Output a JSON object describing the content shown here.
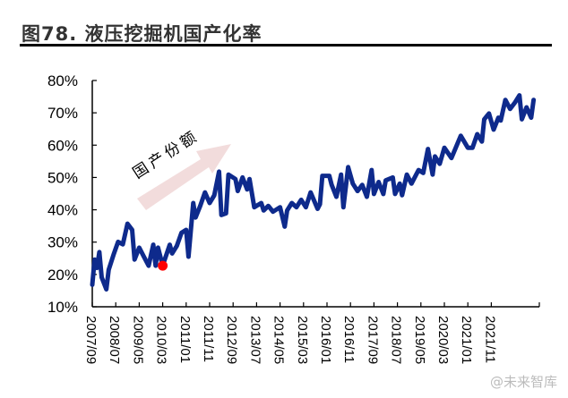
{
  "title": "图78. 液压挖掘机国产化率",
  "watermark": "@未来智库",
  "annotation": {
    "text": "国产份额",
    "arrow_color": "#f2dcdc"
  },
  "chart_data": {
    "type": "line",
    "title": "图78. 液压挖掘机国产化率",
    "xlabel": "",
    "ylabel": "",
    "ylim": [
      10,
      80
    ],
    "xlim": [
      "2007/09",
      "2023/07"
    ],
    "y_ticks": [
      "10%",
      "20%",
      "30%",
      "40%",
      "50%",
      "60%",
      "70%",
      "80%"
    ],
    "x_ticks": [
      "2007/09",
      "2008/07",
      "2009/05",
      "2010/03",
      "2011/01",
      "2011/11",
      "2012/09",
      "2013/07",
      "2014/05",
      "2015/03",
      "2016/01",
      "2016/11",
      "2017/09",
      "2018/07",
      "2019/05",
      "2020/03",
      "2021/01",
      "2021/11"
    ],
    "grid": false,
    "line_color": "#0e2a8c",
    "highlight": {
      "x": "2010/03",
      "y": 22.7,
      "color": "#ff0000"
    },
    "x": [
      "2007/09",
      "2007/10",
      "2007/11",
      "2007/12",
      "2008/01",
      "2008/03",
      "2008/04",
      "2008/06",
      "2008/08",
      "2008/10",
      "2008/12",
      "2009/02",
      "2009/03",
      "2009/05",
      "2009/07",
      "2009/09",
      "2009/11",
      "2009/12",
      "2010/01",
      "2010/03",
      "2010/06",
      "2010/07",
      "2010/09",
      "2010/11",
      "2011/01",
      "2011/02",
      "2011/04",
      "2011/05",
      "2011/07",
      "2011/09",
      "2011/11",
      "2012/01",
      "2012/03",
      "2012/04",
      "2012/06",
      "2012/07",
      "2012/10",
      "2012/11",
      "2013/01",
      "2013/03",
      "2013/04",
      "2013/06",
      "2013/09",
      "2013/10",
      "2013/12",
      "2014/02",
      "2014/05",
      "2014/07",
      "2014/08",
      "2014/10",
      "2014/12",
      "2015/02",
      "2015/04",
      "2015/06",
      "2015/09",
      "2015/10",
      "2015/11",
      "2016/02",
      "2016/03",
      "2016/05",
      "2016/07",
      "2016/08",
      "2016/10",
      "2016/12",
      "2017/02",
      "2017/04",
      "2017/06",
      "2017/08",
      "2017/09",
      "2017/11",
      "2018/01",
      "2018/02",
      "2018/05",
      "2018/06",
      "2018/08",
      "2018/09",
      "2018/11",
      "2019/01",
      "2019/04",
      "2019/06",
      "2019/08",
      "2019/10",
      "2019/11",
      "2020/01",
      "2020/03",
      "2020/06",
      "2020/10",
      "2021/01",
      "2021/03",
      "2021/05",
      "2021/07",
      "2021/08",
      "2021/10",
      "2021/12",
      "2022/02",
      "2022/03",
      "2022/05",
      "2022/07",
      "2022/09",
      "2022/11",
      "2022/12",
      "2023/02",
      "2023/04",
      "2023/05"
    ],
    "values": [
      16.8,
      24.6,
      22.0,
      26.9,
      19.1,
      15.4,
      21.4,
      26.0,
      30.1,
      29.3,
      35.7,
      33.8,
      24.6,
      28.3,
      25.5,
      22.7,
      29.2,
      22.7,
      28.3,
      22.7,
      29.2,
      26.5,
      28.8,
      32.9,
      33.8,
      25.5,
      42.1,
      37.6,
      41.2,
      45.4,
      42.1,
      44.5,
      51.8,
      38.4,
      38.9,
      50.9,
      49.5,
      45.8,
      50.0,
      46.3,
      49.5,
      40.8,
      42.1,
      39.8,
      41.2,
      39.4,
      40.8,
      34.8,
      39.8,
      42.1,
      40.8,
      43.1,
      40.8,
      45.4,
      40.3,
      41.7,
      50.5,
      50.5,
      47.7,
      44.0,
      50.9,
      40.8,
      53.2,
      48.1,
      45.8,
      47.7,
      44.0,
      52.3,
      44.9,
      48.6,
      44.9,
      49.1,
      50.0,
      44.9,
      48.1,
      44.5,
      50.9,
      48.1,
      52.3,
      51.4,
      58.8,
      50.9,
      56.5,
      54.2,
      59.2,
      56.0,
      62.9,
      59.2,
      59.2,
      63.4,
      61.1,
      68.0,
      69.8,
      64.8,
      68.5,
      67.6,
      74.0,
      71.2,
      73.1,
      75.4,
      68.0,
      71.7,
      68.5,
      74.0
    ]
  }
}
